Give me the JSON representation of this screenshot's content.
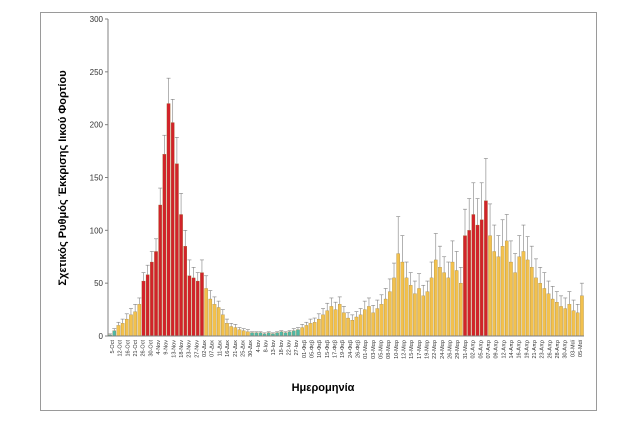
{
  "chart_data": {
    "type": "bar",
    "title": "",
    "xlabel": "Ημερομηνία",
    "ylabel": "Σχετικός Ρυθμός Έκκρισης Ιικού Φορτίου",
    "ylim": [
      0,
      300
    ],
    "yticks": [
      0,
      50,
      100,
      150,
      200,
      250,
      300
    ],
    "grid": false,
    "legend": "none",
    "colors": {
      "low": "#4FB8A6",
      "moderate": "#F2C14E",
      "high": "#D2232A",
      "error_bar": "#808080",
      "bar_edge": "#8A6A20",
      "frame": "#808080"
    },
    "x_tick_labels": [
      "5-Oct",
      "12-Oct",
      "16-Oct",
      "21-Oct",
      "26-Oct",
      "30-Oct",
      "4-Nov",
      "9-Nov",
      "13-Nov",
      "18-Nov",
      "23-Nov",
      "27-Nov",
      "02-Δεκ",
      "07-Δεκ",
      "11-Δεκ",
      "16-Δεκ",
      "21-Δεκ",
      "25-Δεκ",
      "30-Δεκ",
      "4-Ιαν",
      "8-Ιαν",
      "13-Ιαν",
      "18-Ιαν",
      "22-Ιαν",
      "27-Ιαν",
      "01-Φεβ",
      "05-Φεβ",
      "10-Φεβ",
      "15-Φεβ",
      "17-Φεβ",
      "19-Φεβ",
      "24-Φεβ",
      "26-Φεβ",
      "01-Μαρ",
      "03-Μαρ",
      "05-Μαρ",
      "08-Μαρ",
      "10-Μαρ",
      "12-Μαρ",
      "15-Μαρ",
      "17-Μαρ",
      "19-Μαρ",
      "22-Μαρ",
      "24-Μαρ",
      "26-Μαρ",
      "29-Μαρ",
      "31-Μαρ",
      "02-Απρ",
      "05-Απρ",
      "07-Απρ",
      "09-Απρ",
      "12-Απρ",
      "14-Απρ",
      "16-Απρ",
      "19-Απρ",
      "21-Απρ",
      "23-Απρ",
      "26-Απρ",
      "28-Απρ",
      "30-Απρ",
      "03-Μαϊ",
      "05-Μαϊ"
    ],
    "bars": [
      {
        "v": 1,
        "e": 1,
        "c": "low"
      },
      {
        "v": 5,
        "e": 2,
        "c": "low"
      },
      {
        "v": 10,
        "e": 3,
        "c": "moderate"
      },
      {
        "v": 12,
        "e": 4,
        "c": "moderate"
      },
      {
        "v": 16,
        "e": 5,
        "c": "moderate"
      },
      {
        "v": 20,
        "e": 6,
        "c": "moderate"
      },
      {
        "v": 23,
        "e": 7,
        "c": "moderate"
      },
      {
        "v": 30,
        "e": 6,
        "c": "moderate"
      },
      {
        "v": 52,
        "e": 8,
        "c": "high"
      },
      {
        "v": 58,
        "e": 9,
        "c": "high"
      },
      {
        "v": 70,
        "e": 10,
        "c": "high"
      },
      {
        "v": 80,
        "e": 12,
        "c": "high"
      },
      {
        "v": 124,
        "e": 16,
        "c": "high"
      },
      {
        "v": 172,
        "e": 18,
        "c": "high"
      },
      {
        "v": 220,
        "e": 24,
        "c": "high"
      },
      {
        "v": 202,
        "e": 22,
        "c": "high"
      },
      {
        "v": 163,
        "e": 25,
        "c": "high"
      },
      {
        "v": 115,
        "e": 20,
        "c": "high"
      },
      {
        "v": 85,
        "e": 15,
        "c": "high"
      },
      {
        "v": 57,
        "e": 15,
        "c": "high"
      },
      {
        "v": 55,
        "e": 10,
        "c": "high"
      },
      {
        "v": 52,
        "e": 8,
        "c": "high"
      },
      {
        "v": 60,
        "e": 12,
        "c": "high"
      },
      {
        "v": 45,
        "e": 12,
        "c": "moderate"
      },
      {
        "v": 35,
        "e": 8,
        "c": "moderate"
      },
      {
        "v": 30,
        "e": 7,
        "c": "moderate"
      },
      {
        "v": 27,
        "e": 6,
        "c": "moderate"
      },
      {
        "v": 20,
        "e": 5,
        "c": "moderate"
      },
      {
        "v": 12,
        "e": 4,
        "c": "moderate"
      },
      {
        "v": 9,
        "e": 3,
        "c": "moderate"
      },
      {
        "v": 8,
        "e": 3,
        "c": "moderate"
      },
      {
        "v": 6,
        "e": 2,
        "c": "moderate"
      },
      {
        "v": 5,
        "e": 2,
        "c": "moderate"
      },
      {
        "v": 4,
        "e": 2,
        "c": "moderate"
      },
      {
        "v": 3,
        "e": 1,
        "c": "low"
      },
      {
        "v": 3,
        "e": 1,
        "c": "low"
      },
      {
        "v": 3,
        "e": 1,
        "c": "low"
      },
      {
        "v": 2,
        "e": 1,
        "c": "low"
      },
      {
        "v": 3,
        "e": 1,
        "c": "low"
      },
      {
        "v": 2,
        "e": 1,
        "c": "low"
      },
      {
        "v": 3,
        "e": 1,
        "c": "low"
      },
      {
        "v": 4,
        "e": 1,
        "c": "low"
      },
      {
        "v": 3,
        "e": 1,
        "c": "low"
      },
      {
        "v": 4,
        "e": 1,
        "c": "low"
      },
      {
        "v": 5,
        "e": 2,
        "c": "low"
      },
      {
        "v": 6,
        "e": 2,
        "c": "low"
      },
      {
        "v": 8,
        "e": 3,
        "c": "moderate"
      },
      {
        "v": 10,
        "e": 3,
        "c": "moderate"
      },
      {
        "v": 12,
        "e": 4,
        "c": "moderate"
      },
      {
        "v": 13,
        "e": 4,
        "c": "moderate"
      },
      {
        "v": 16,
        "e": 5,
        "c": "moderate"
      },
      {
        "v": 20,
        "e": 6,
        "c": "moderate"
      },
      {
        "v": 24,
        "e": 7,
        "c": "moderate"
      },
      {
        "v": 28,
        "e": 8,
        "c": "moderate"
      },
      {
        "v": 25,
        "e": 7,
        "c": "moderate"
      },
      {
        "v": 30,
        "e": 7,
        "c": "moderate"
      },
      {
        "v": 22,
        "e": 6,
        "c": "moderate"
      },
      {
        "v": 17,
        "e": 5,
        "c": "moderate"
      },
      {
        "v": 15,
        "e": 5,
        "c": "moderate"
      },
      {
        "v": 18,
        "e": 5,
        "c": "moderate"
      },
      {
        "v": 20,
        "e": 6,
        "c": "moderate"
      },
      {
        "v": 25,
        "e": 8,
        "c": "moderate"
      },
      {
        "v": 28,
        "e": 8,
        "c": "moderate"
      },
      {
        "v": 22,
        "e": 7,
        "c": "moderate"
      },
      {
        "v": 26,
        "e": 8,
        "c": "moderate"
      },
      {
        "v": 30,
        "e": 9,
        "c": "moderate"
      },
      {
        "v": 35,
        "e": 10,
        "c": "moderate"
      },
      {
        "v": 42,
        "e": 12,
        "c": "moderate"
      },
      {
        "v": 55,
        "e": 14,
        "c": "moderate"
      },
      {
        "v": 78,
        "e": 35,
        "c": "moderate"
      },
      {
        "v": 70,
        "e": 25,
        "c": "moderate"
      },
      {
        "v": 55,
        "e": 15,
        "c": "moderate"
      },
      {
        "v": 48,
        "e": 12,
        "c": "moderate"
      },
      {
        "v": 40,
        "e": 12,
        "c": "moderate"
      },
      {
        "v": 45,
        "e": 14,
        "c": "moderate"
      },
      {
        "v": 38,
        "e": 10,
        "c": "moderate"
      },
      {
        "v": 42,
        "e": 10,
        "c": "moderate"
      },
      {
        "v": 55,
        "e": 15,
        "c": "moderate"
      },
      {
        "v": 72,
        "e": 25,
        "c": "moderate"
      },
      {
        "v": 65,
        "e": 20,
        "c": "moderate"
      },
      {
        "v": 60,
        "e": 15,
        "c": "moderate"
      },
      {
        "v": 55,
        "e": 15,
        "c": "moderate"
      },
      {
        "v": 70,
        "e": 20,
        "c": "moderate"
      },
      {
        "v": 62,
        "e": 18,
        "c": "moderate"
      },
      {
        "v": 50,
        "e": 15,
        "c": "moderate"
      },
      {
        "v": 95,
        "e": 25,
        "c": "high"
      },
      {
        "v": 100,
        "e": 30,
        "c": "high"
      },
      {
        "v": 115,
        "e": 30,
        "c": "high"
      },
      {
        "v": 105,
        "e": 25,
        "c": "high"
      },
      {
        "v": 110,
        "e": 35,
        "c": "high"
      },
      {
        "v": 128,
        "e": 40,
        "c": "high"
      },
      {
        "v": 95,
        "e": 30,
        "c": "moderate"
      },
      {
        "v": 80,
        "e": 25,
        "c": "moderate"
      },
      {
        "v": 75,
        "e": 20,
        "c": "moderate"
      },
      {
        "v": 85,
        "e": 25,
        "c": "moderate"
      },
      {
        "v": 90,
        "e": 25,
        "c": "moderate"
      },
      {
        "v": 70,
        "e": 20,
        "c": "moderate"
      },
      {
        "v": 60,
        "e": 18,
        "c": "moderate"
      },
      {
        "v": 75,
        "e": 20,
        "c": "moderate"
      },
      {
        "v": 80,
        "e": 25,
        "c": "moderate"
      },
      {
        "v": 72,
        "e": 22,
        "c": "moderate"
      },
      {
        "v": 65,
        "e": 20,
        "c": "moderate"
      },
      {
        "v": 55,
        "e": 18,
        "c": "moderate"
      },
      {
        "v": 50,
        "e": 15,
        "c": "moderate"
      },
      {
        "v": 45,
        "e": 15,
        "c": "moderate"
      },
      {
        "v": 40,
        "e": 12,
        "c": "moderate"
      },
      {
        "v": 35,
        "e": 12,
        "c": "moderate"
      },
      {
        "v": 32,
        "e": 10,
        "c": "moderate"
      },
      {
        "v": 28,
        "e": 10,
        "c": "moderate"
      },
      {
        "v": 26,
        "e": 10,
        "c": "moderate"
      },
      {
        "v": 30,
        "e": 12,
        "c": "moderate"
      },
      {
        "v": 24,
        "e": 10,
        "c": "moderate"
      },
      {
        "v": 22,
        "e": 8,
        "c": "moderate"
      },
      {
        "v": 38,
        "e": 12,
        "c": "moderate"
      }
    ]
  }
}
